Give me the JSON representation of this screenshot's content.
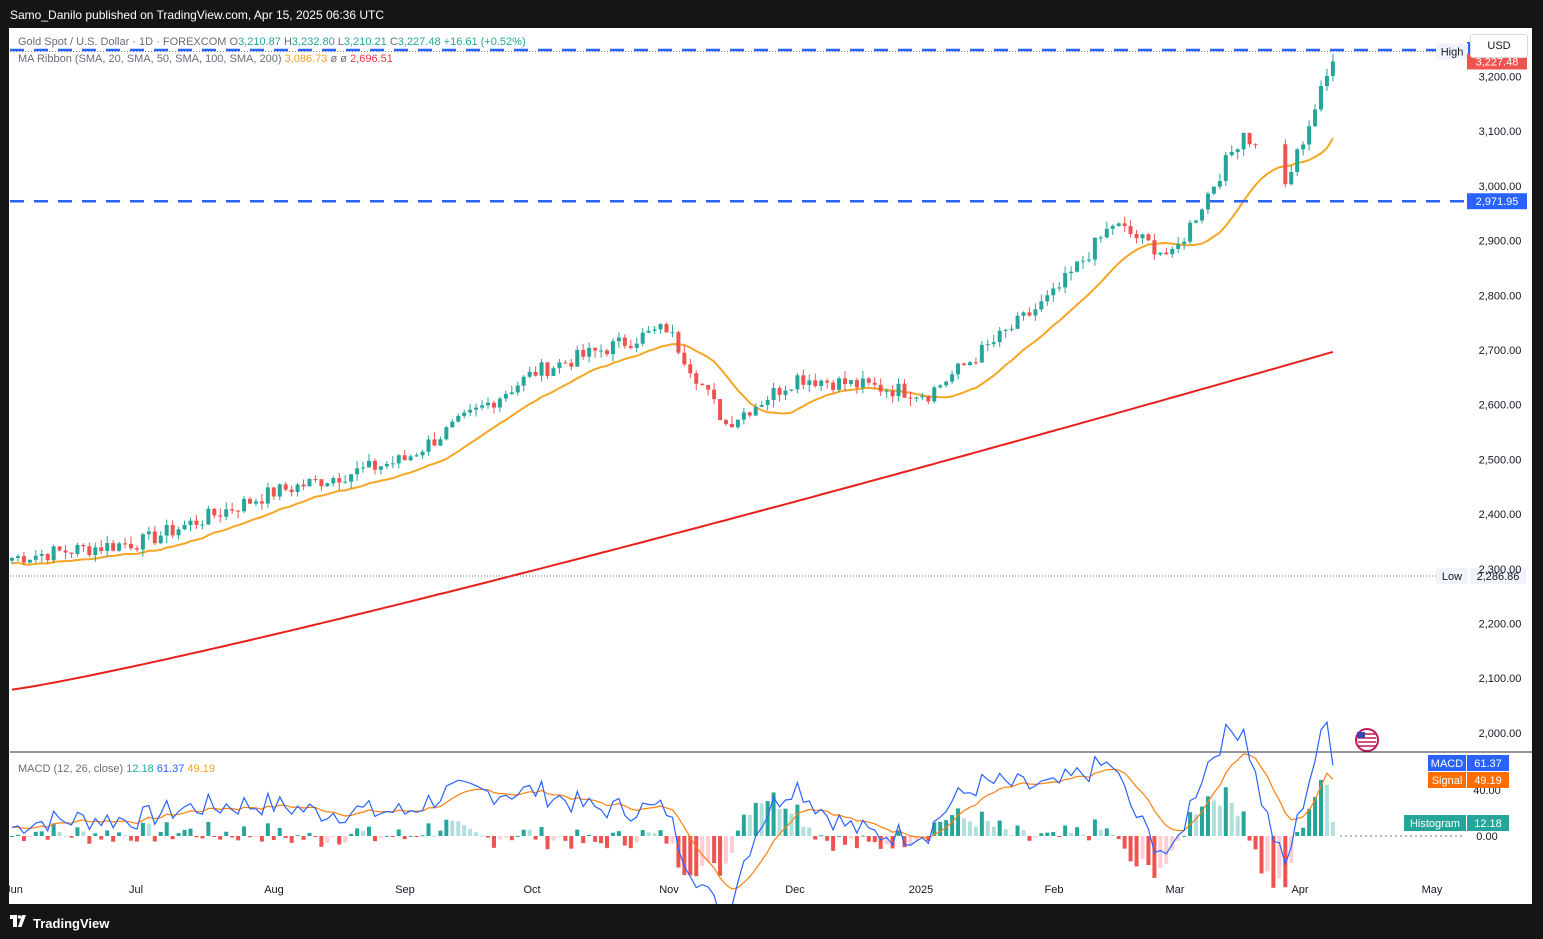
{
  "header": {
    "published": "Samo_Danilo published on TradingView.com, Apr 15, 2025 06:36 UTC"
  },
  "legend": {
    "symbol": "Gold Spot / U.S. Dollar · 1D · FOREXCOM",
    "o_label": "O",
    "o_value": "3,210.87",
    "h_label": "H",
    "h_value": "3,232.80",
    "l_label": "L",
    "l_value": "3,210.21",
    "c_label": "C",
    "c_value": "3,227.48",
    "change": "+16.61 (+0.52%)",
    "ma_label": "MA Ribbon (SMA, 20, SMA, 50, SMA, 100, SMA, 200)",
    "ma1": "3,086.73",
    "ma_sep1": "ø",
    "ma_sep2": "ø",
    "ma4": "2,696.51",
    "macd_label": "MACD (12, 26, close)",
    "macd_hist": "12.18",
    "macd_macd": "61.37",
    "macd_signal": "49.19"
  },
  "currency": "USD",
  "footer": {
    "brand": "TradingView"
  },
  "colors": {
    "up": "#26a69a",
    "down": "#ef5350",
    "sma20": "#f5a623",
    "sma200": "#e8201c",
    "level": "#2962ff",
    "macd": "#2962ff",
    "signal": "#ff7f0e"
  },
  "chart_data": {
    "type": "candlestick",
    "price_axis": {
      "ticks": [
        2000,
        2100,
        2200,
        2300,
        2400,
        2500,
        2600,
        2700,
        2800,
        2900,
        3000,
        3100,
        3200
      ],
      "tick_labels": [
        "2,000.00",
        "2,100.00",
        "2,200.00",
        "2,300.00",
        "2,400.00",
        "2,500.00",
        "2,600.00",
        "2,700.00",
        "2,800.00",
        "2,900.00",
        "3,000.00",
        "3,100.00",
        "3,200.00"
      ],
      "range": [
        1965,
        3285
      ]
    },
    "time_axis": {
      "labels": [
        "Jun",
        "Jul",
        "Aug",
        "Sep",
        "Oct",
        "Nov",
        "Dec",
        "2025",
        "Feb",
        "Mar",
        "Apr",
        "May"
      ]
    },
    "levels": [
      {
        "name": "resistance",
        "value": 3248.33,
        "label": "3,248.33",
        "style": "dashed"
      },
      {
        "name": "support",
        "value": 2971.95,
        "label": "2,971.95",
        "style": "dashed"
      }
    ],
    "markers": [
      {
        "text": "High",
        "value": 3245.76,
        "label": "3,245.76"
      },
      {
        "text": "Low",
        "value": 2286.86,
        "label": "2,286.86"
      },
      {
        "text": "",
        "value": 3227.48,
        "label": "3,227.48",
        "kind": "last-price"
      }
    ],
    "series": [
      {
        "name": "Close",
        "monthly_path": [
          [
            "Jun",
            2320
          ],
          [
            "Jul",
            2350
          ],
          [
            "Aug",
            2440
          ],
          [
            "Sep",
            2500
          ],
          [
            "Oct",
            2660
          ],
          [
            "Nov",
            2740
          ],
          [
            "Nov-mid",
            2565
          ],
          [
            "Dec",
            2650
          ],
          [
            "2025",
            2620
          ],
          [
            "Feb",
            2800
          ],
          [
            "Feb-end",
            2930
          ],
          [
            "Mar",
            2870
          ],
          [
            "Mar-end",
            3100
          ],
          [
            "Apr-early",
            3000
          ],
          [
            "Apr",
            3227.48
          ]
        ]
      },
      {
        "name": "SMA 20",
        "last": 3086.73
      },
      {
        "name": "SMA 200",
        "last": 2696.51
      }
    ],
    "macd": {
      "axis_ticks": [
        0,
        40
      ],
      "axis_labels": [
        "0.00",
        "40.00"
      ],
      "tags": [
        {
          "text": "MACD",
          "value": "61.37"
        },
        {
          "text": "Signal",
          "value": "49.19"
        },
        {
          "text": "Histogram",
          "value": "12.18"
        }
      ]
    }
  }
}
